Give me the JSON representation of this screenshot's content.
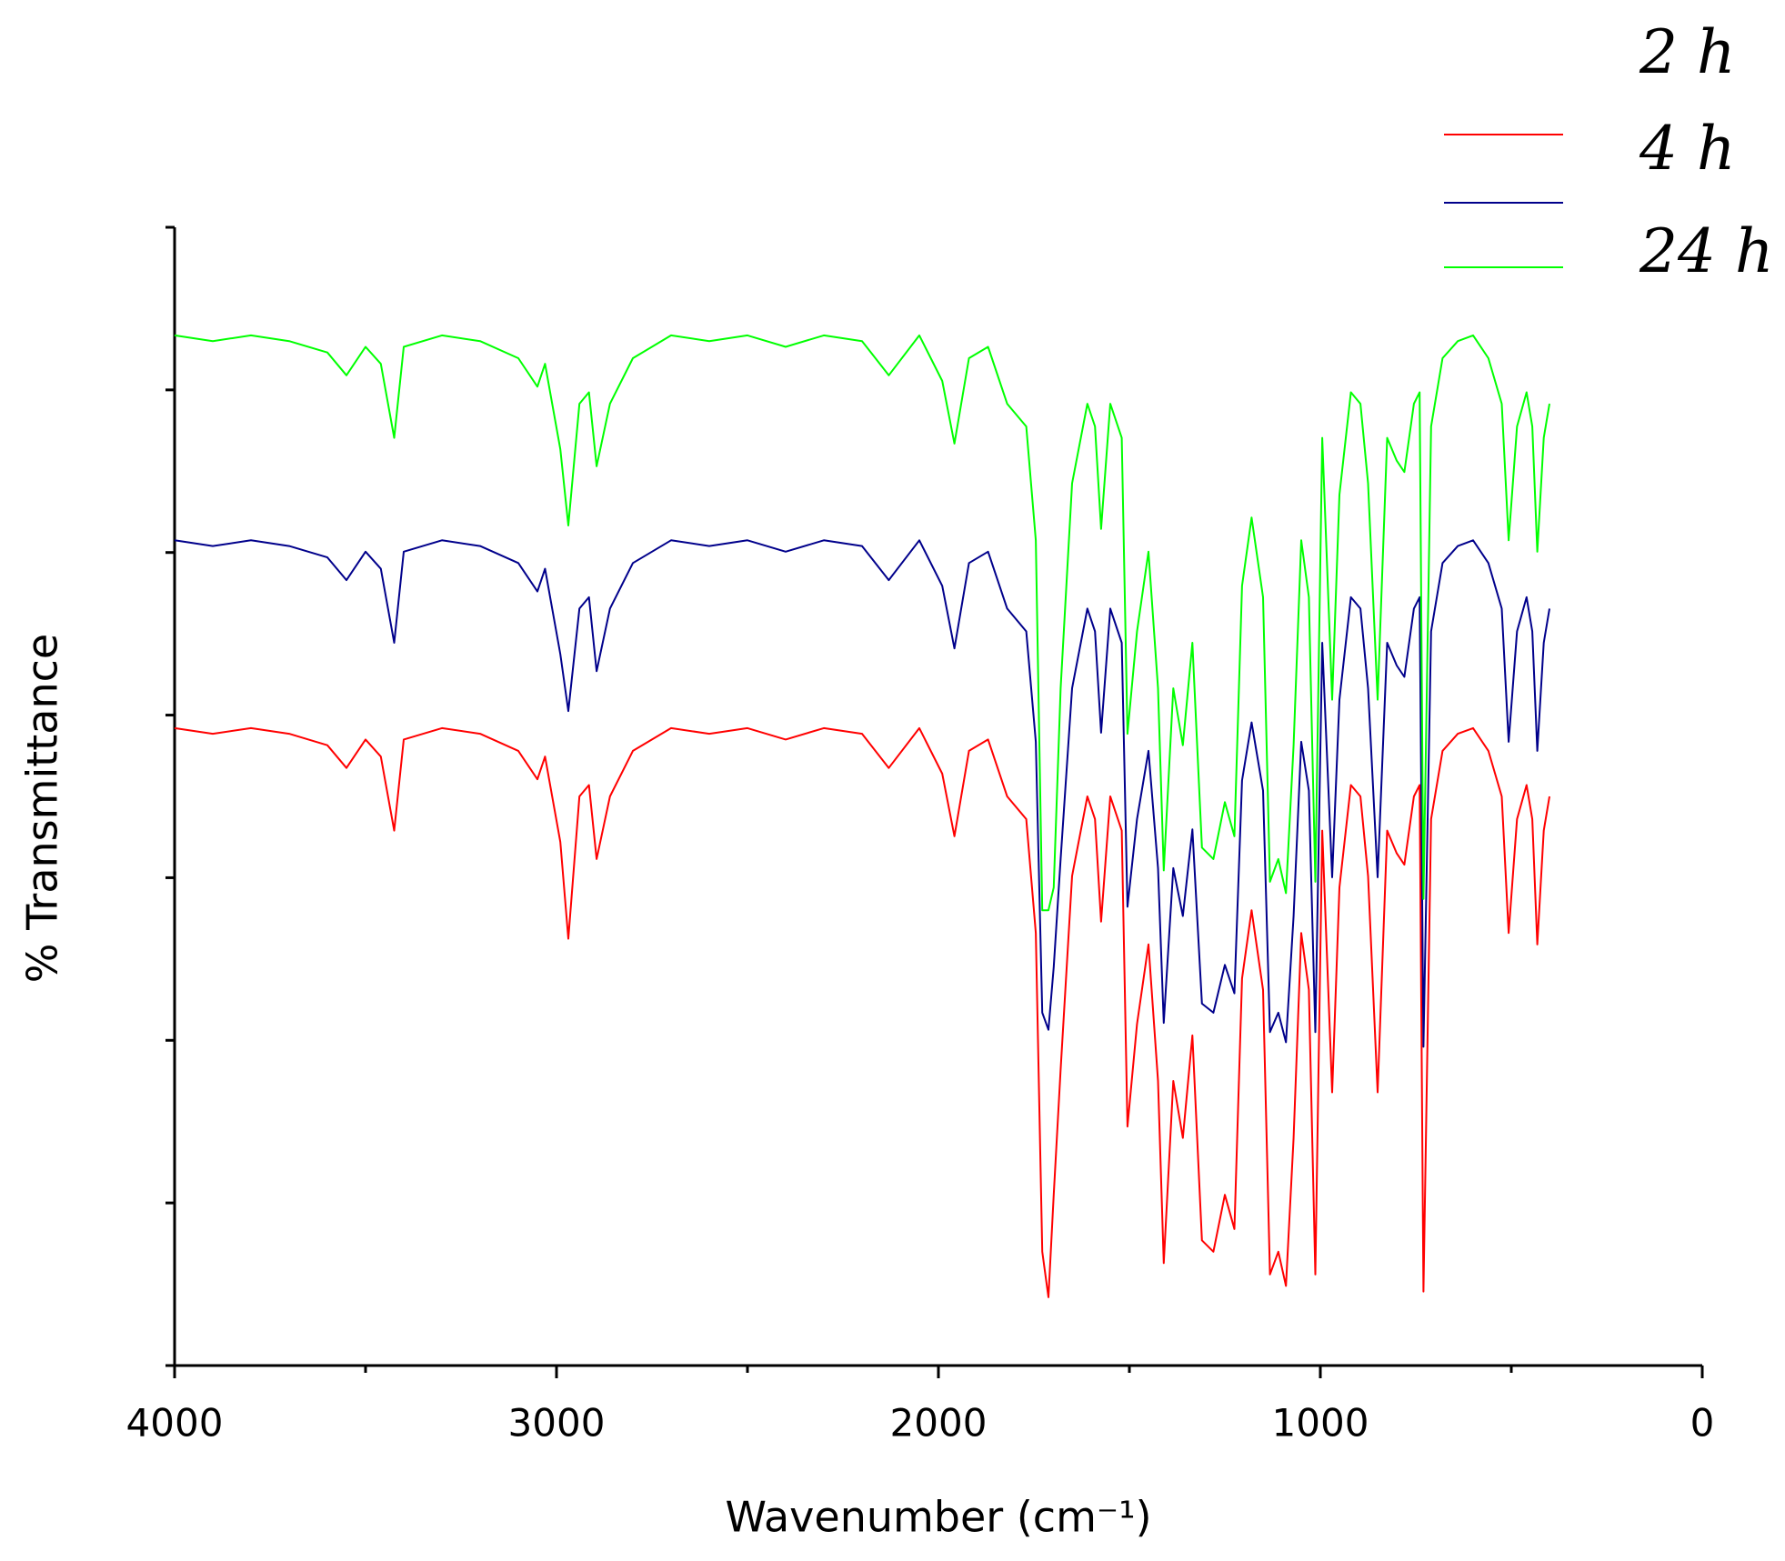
{
  "chart_data": {
    "type": "line",
    "xlabel": "Wavenumber (cm⁻¹)",
    "ylabel": "% Transmittance",
    "xlim": [
      4000,
      0
    ],
    "xticks": [
      4000,
      3000,
      2000,
      1000,
      0
    ],
    "xminorticks": [
      3500,
      2500,
      1500,
      500
    ],
    "ylim": [
      0,
      7
    ],
    "yticks": [
      0,
      1,
      2,
      3,
      4,
      5,
      6,
      7
    ],
    "ytick_labels": false,
    "x": [
      4000,
      3900,
      3800,
      3700,
      3600,
      3550,
      3500,
      3460,
      3425,
      3400,
      3300,
      3200,
      3100,
      3050,
      3030,
      2990,
      2969,
      2940,
      2915,
      2895,
      2860,
      2800,
      2700,
      2600,
      2500,
      2400,
      2300,
      2200,
      2130,
      2050,
      1990,
      1958,
      1920,
      1870,
      1820,
      1770,
      1745,
      1728,
      1712,
      1698,
      1680,
      1650,
      1610,
      1590,
      1574,
      1550,
      1520,
      1505,
      1480,
      1450,
      1425,
      1410,
      1385,
      1360,
      1335,
      1310,
      1280,
      1250,
      1225,
      1205,
      1180,
      1150,
      1132,
      1110,
      1090,
      1070,
      1050,
      1030,
      1013,
      995,
      969,
      950,
      920,
      895,
      875,
      850,
      825,
      800,
      780,
      755,
      740,
      730,
      710,
      680,
      640,
      600,
      560,
      525,
      507,
      485,
      460,
      445,
      432,
      415,
      400
    ],
    "series": [
      {
        "name": "2 h",
        "color": "#ff0000",
        "values": [
          3.92,
          3.885,
          3.92,
          3.885,
          3.815,
          3.675,
          3.85,
          3.745,
          3.29,
          3.85,
          3.92,
          3.885,
          3.78,
          3.605,
          3.745,
          3.22,
          2.625,
          3.5,
          3.57,
          3.115,
          3.5,
          3.78,
          3.92,
          3.885,
          3.92,
          3.85,
          3.92,
          3.885,
          3.675,
          3.92,
          3.64,
          3.255,
          3.78,
          3.85,
          3.5,
          3.36,
          2.66,
          0.7,
          0.42,
          1.05,
          1.82,
          3.01,
          3.5,
          3.36,
          2.73,
          3.5,
          3.29,
          1.47,
          2.1,
          2.59,
          1.75,
          0.63,
          1.75,
          1.4,
          2.03,
          0.77,
          0.7,
          1.05,
          0.84,
          2.38,
          2.8,
          2.31,
          0.56,
          0.7,
          0.49,
          1.4,
          2.66,
          2.31,
          0.56,
          3.29,
          1.68,
          2.94,
          3.57,
          3.5,
          3.01,
          1.68,
          3.29,
          3.15,
          3.08,
          3.5,
          3.57,
          0.455,
          3.36,
          3.78,
          3.885,
          3.92,
          3.78,
          3.5,
          2.66,
          3.36,
          3.57,
          3.36,
          2.59,
          3.29,
          3.5
        ]
      },
      {
        "name": "4 h",
        "color": "#00008b",
        "values": [
          5.075,
          5.04,
          5.075,
          5.04,
          4.97,
          4.83,
          5.005,
          4.9,
          4.445,
          5.005,
          5.075,
          5.04,
          4.935,
          4.76,
          4.9,
          4.375,
          4.025,
          4.655,
          4.725,
          4.27,
          4.655,
          4.935,
          5.075,
          5.04,
          5.075,
          5.005,
          5.075,
          5.04,
          4.83,
          5.075,
          4.795,
          4.41,
          4.935,
          5.005,
          4.655,
          4.515,
          3.836,
          2.17,
          2.065,
          2.45,
          3.115,
          4.165,
          4.655,
          4.515,
          3.892,
          4.655,
          4.445,
          2.821,
          3.36,
          3.78,
          3.059,
          2.107,
          3.059,
          2.765,
          3.297,
          2.226,
          2.17,
          2.464,
          2.289,
          3.598,
          3.955,
          3.535,
          2.051,
          2.17,
          1.988,
          2.765,
          3.836,
          3.535,
          2.051,
          4.445,
          3.003,
          4.095,
          4.725,
          4.655,
          4.165,
          3.003,
          4.445,
          4.305,
          4.235,
          4.655,
          4.725,
          1.96,
          4.515,
          4.935,
          5.04,
          5.075,
          4.935,
          4.655,
          3.836,
          4.515,
          4.725,
          4.515,
          3.78,
          4.445,
          4.655
        ]
      },
      {
        "name": "24 h",
        "color": "#00ff00",
        "values": [
          6.335,
          6.3,
          6.335,
          6.3,
          6.23,
          6.09,
          6.265,
          6.16,
          5.705,
          6.265,
          6.335,
          6.3,
          6.195,
          6.02,
          6.16,
          5.635,
          5.166,
          5.915,
          5.985,
          5.53,
          5.915,
          6.195,
          6.335,
          6.3,
          6.335,
          6.265,
          6.335,
          6.3,
          6.09,
          6.335,
          6.055,
          5.67,
          6.195,
          6.265,
          5.915,
          5.775,
          5.075,
          2.8,
          2.8,
          2.94,
          4.165,
          5.425,
          5.915,
          5.775,
          5.145,
          5.915,
          5.705,
          3.885,
          4.515,
          5.005,
          4.165,
          3.045,
          4.165,
          3.815,
          4.445,
          3.185,
          3.115,
          3.465,
          3.255,
          4.795,
          5.215,
          4.725,
          2.975,
          3.115,
          2.905,
          3.815,
          5.075,
          4.725,
          2.975,
          5.705,
          4.095,
          5.355,
          5.985,
          5.915,
          5.425,
          4.095,
          5.705,
          5.565,
          5.495,
          5.915,
          5.985,
          2.87,
          5.775,
          6.195,
          6.3,
          6.335,
          6.195,
          5.915,
          5.075,
          5.775,
          5.985,
          5.775,
          5.005,
          5.705,
          5.915
        ]
      }
    ]
  }
}
